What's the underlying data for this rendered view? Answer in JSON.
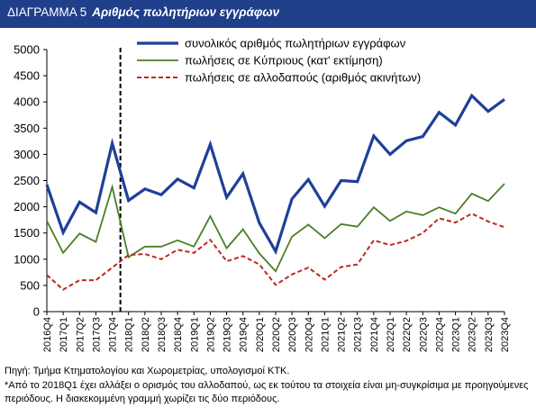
{
  "header": {
    "number": "ΔΙΑΓΡΑΜΜΑ 5",
    "title": "Αριθμός πωλητήριων εγγράφων"
  },
  "chart_data": {
    "type": "line",
    "title": "",
    "xlabel": "",
    "ylabel": "",
    "ylim": [
      0,
      5000
    ],
    "yticks": [
      0,
      500,
      1000,
      1500,
      2000,
      2500,
      3000,
      3500,
      4000,
      4500,
      5000
    ],
    "grid": false,
    "legend_position": "top",
    "categories": [
      "2016Q4",
      "2017Q1",
      "2017Q2",
      "2017Q3",
      "2017Q4",
      "2018Q1",
      "2018Q2",
      "2018Q3",
      "2018Q4",
      "2019Q1",
      "2019Q2",
      "2019Q3",
      "2019Q4",
      "2020Q1",
      "2020Q2",
      "2020Q3",
      "2020Q4",
      "2021Q1",
      "2021Q2",
      "2021Q3",
      "2021Q4",
      "2022Q1",
      "2022Q2",
      "2022Q3",
      "2022Q4",
      "2023Q1",
      "2023Q2",
      "2023Q3",
      "2023Q4"
    ],
    "divider_category": "2018Q1",
    "series": [
      {
        "name": "συνολικός αριθμός πωλητήριων εγγράφων",
        "color": "#1f3f99",
        "style": "solid",
        "values": [
          2420,
          1510,
          2090,
          1890,
          3210,
          2120,
          2340,
          2230,
          2530,
          2360,
          3190,
          2180,
          2630,
          1690,
          1150,
          2150,
          2520,
          2010,
          2500,
          2480,
          3350,
          3000,
          3260,
          3340,
          3800,
          3560,
          4120,
          3820,
          4050
        ]
      },
      {
        "name": "πωλήσεις σε Κύπριους (κατ' εκτίμηση)",
        "color": "#4a7f24",
        "style": "solid",
        "values": [
          1730,
          1120,
          1490,
          1330,
          2380,
          1040,
          1240,
          1240,
          1360,
          1240,
          1820,
          1210,
          1570,
          1110,
          770,
          1430,
          1660,
          1400,
          1670,
          1620,
          1990,
          1730,
          1910,
          1840,
          1990,
          1870,
          2250,
          2110,
          2440
        ]
      },
      {
        "name": "πωλήσεις σε αλλοδαπούς (αριθμός ακινήτων)",
        "color": "#c0281e",
        "style": "dashed",
        "values": [
          700,
          420,
          600,
          600,
          840,
          1080,
          1100,
          1000,
          1180,
          1120,
          1370,
          960,
          1060,
          900,
          510,
          710,
          840,
          610,
          850,
          900,
          1360,
          1270,
          1350,
          1500,
          1780,
          1700,
          1870,
          1720,
          1610
        ]
      }
    ]
  },
  "notes": {
    "source": "Πηγή: Τμήμα Κτηματολογίου και Χωρομετρίας, υπολογισμοί ΚΤΚ.",
    "footnote": "*Από το 2018Q1 έχει αλλάξει ο ορισμός του αλλοδαπού, ως εκ τούτου τα στοιχεία είναι μη-συγκρίσιμα με προηγούμενες περιόδους. Η διακεκομμένη γραμμή χωρίζει τις δύο περιόδους."
  }
}
